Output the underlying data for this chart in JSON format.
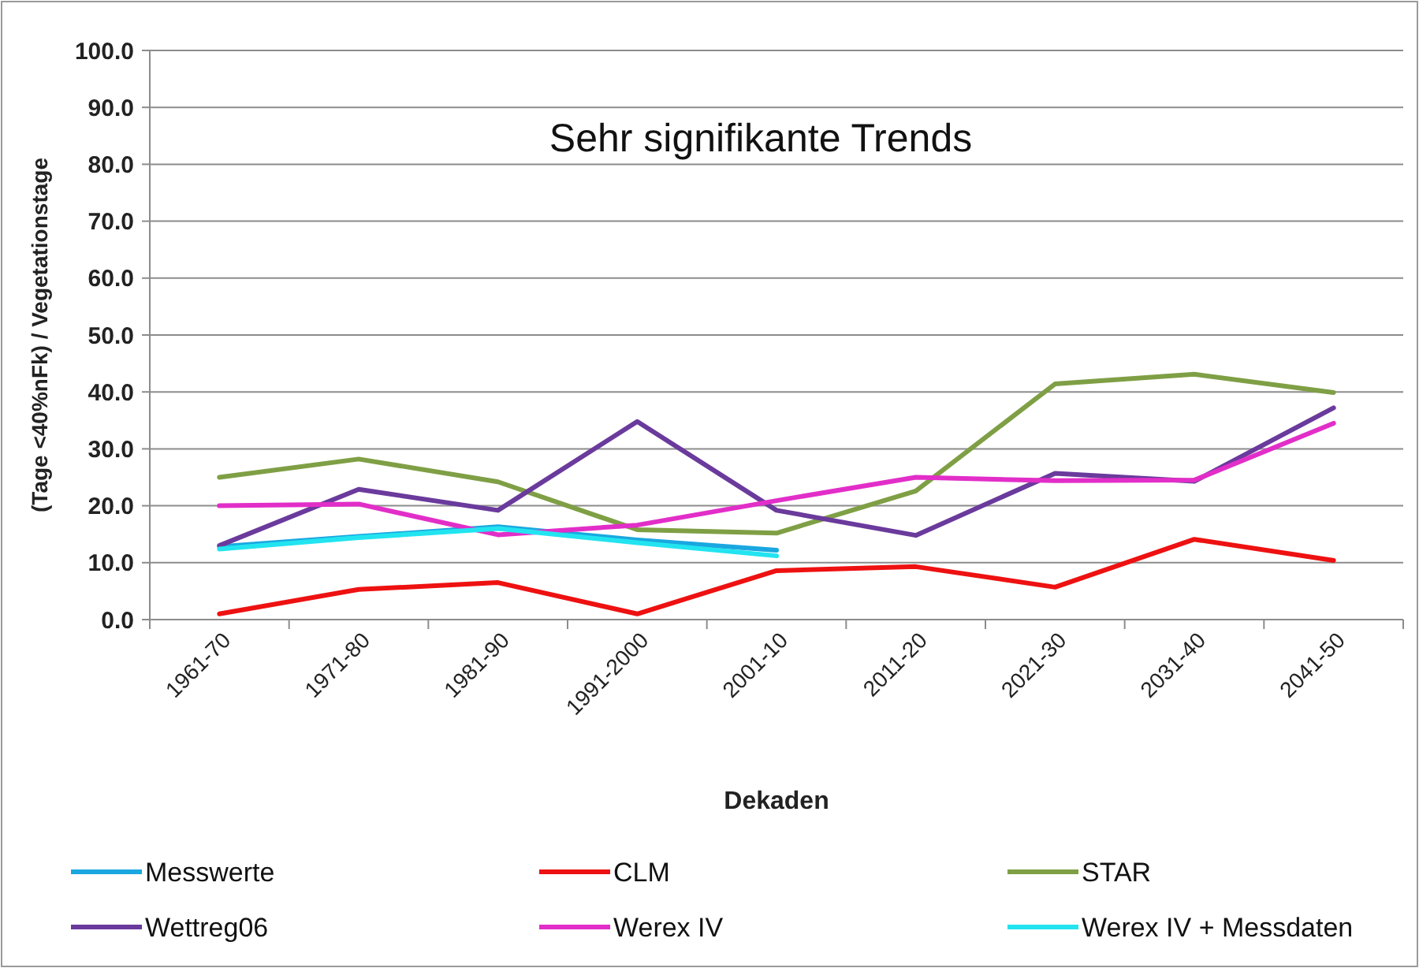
{
  "chart_data": {
    "type": "line",
    "title": "Sehr signifikante Trends",
    "xlabel": "Dekaden",
    "ylabel": "(Tage <40%nFk) / Vegetationstage",
    "categories": [
      "1961-70",
      "1971-80",
      "1981-90",
      "1991-2000",
      "2001-10",
      "2011-20",
      "2021-30",
      "2031-40",
      "2041-50"
    ],
    "ylim": [
      0,
      100
    ],
    "yticks": [
      {
        "value": 0,
        "label": "0.0"
      },
      {
        "value": 10,
        "label": "10.0"
      },
      {
        "value": 20,
        "label": "20.0"
      },
      {
        "value": 30,
        "label": "30.0"
      },
      {
        "value": 40,
        "label": "40.0"
      },
      {
        "value": 50,
        "label": "50.0"
      },
      {
        "value": 60,
        "label": "60.0"
      },
      {
        "value": 70,
        "label": "70.0"
      },
      {
        "value": 80,
        "label": "80.0"
      },
      {
        "value": 90,
        "label": "90.0"
      },
      {
        "value": 100,
        "label": "100.0"
      }
    ],
    "grid": "y",
    "legend": "bottom",
    "marker": "none",
    "line_style": "solid",
    "series": [
      {
        "name": "Messwerte",
        "color": "#1aa7e0",
        "values": [
          12.8,
          14.6,
          16.3,
          14.0,
          12.2,
          null,
          null,
          null,
          null
        ]
      },
      {
        "name": "CLM",
        "color": "#ee1111",
        "values": [
          1.0,
          5.3,
          6.5,
          1.0,
          8.6,
          9.3,
          5.7,
          14.1,
          10.4
        ]
      },
      {
        "name": "STAR",
        "color": "#7f9f45",
        "values": [
          25.0,
          28.2,
          24.2,
          15.8,
          15.2,
          22.6,
          41.4,
          43.1,
          39.9
        ]
      },
      {
        "name": "Wettreg06",
        "color": "#6a3a9c",
        "values": [
          13.0,
          22.9,
          19.2,
          34.8,
          19.2,
          14.8,
          25.7,
          24.3,
          37.2
        ]
      },
      {
        "name": "Werex IV",
        "color": "#e22ec8",
        "values": [
          20.0,
          20.3,
          14.9,
          16.6,
          20.9,
          25.0,
          24.4,
          24.5,
          34.5
        ]
      },
      {
        "name": "Werex IV + Messdaten",
        "color": "#22e4f0",
        "values": [
          12.4,
          14.4,
          16.0,
          13.5,
          11.2,
          null,
          null,
          null,
          null
        ]
      }
    ]
  }
}
